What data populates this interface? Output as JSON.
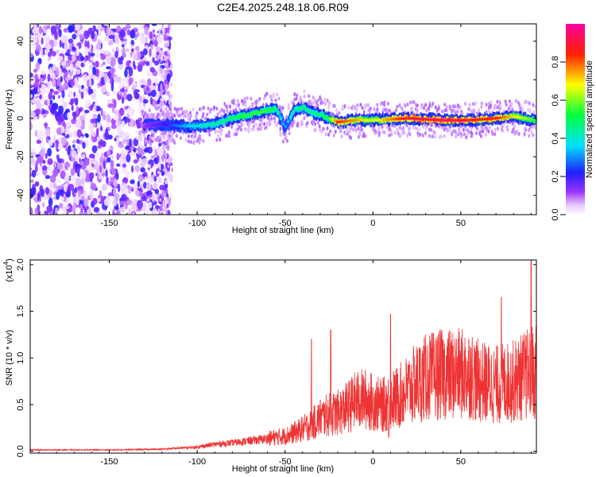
{
  "figure": {
    "title": "C2E4.2025.248.18.06.R09"
  },
  "chart_data": [
    {
      "type": "heatmap",
      "xlabel": "Height of straight line (km)",
      "ylabel": "Frequency (Hz)",
      "xlim": [
        -195,
        93
      ],
      "ylim": [
        -50,
        49
      ],
      "x_ticks": [
        "-150",
        "-100",
        "-50",
        "0",
        "50"
      ],
      "x_tick_values": [
        -150,
        -100,
        -50,
        0,
        50
      ],
      "y_ticks": [
        "-40",
        "-20",
        "0",
        "20",
        "40"
      ],
      "y_tick_values": [
        -40,
        -20,
        0,
        20,
        40
      ],
      "grid": false,
      "colorbar": {
        "label": "Normalized spectral amplitude",
        "range": [
          0,
          1
        ],
        "ticks": [
          "0.0",
          "0.2",
          "0.4",
          "0.6",
          "0.8"
        ],
        "tick_values": [
          0.0,
          0.2,
          0.4,
          0.6,
          0.8
        ],
        "colormap": "rainbow (white-violet-blue-cyan-green-yellow-red-magenta)"
      },
      "ridge": {
        "x": [
          -130,
          -120,
          -110,
          -100,
          -90,
          -80,
          -70,
          -60,
          -55,
          -50,
          -45,
          -40,
          -35,
          -30,
          -25,
          -20,
          -10,
          0,
          20,
          40,
          55,
          70,
          80,
          92
        ],
        "freq": [
          -4,
          -3,
          -4,
          -4,
          -3,
          0,
          2,
          4,
          5,
          -5,
          4,
          6,
          3,
          2,
          0,
          -2,
          -1,
          -1,
          0,
          -1,
          -1,
          0,
          1,
          -1
        ],
        "amplitude": [
          0.15,
          0.2,
          0.3,
          0.4,
          0.45,
          0.5,
          0.55,
          0.55,
          0.5,
          0.3,
          0.45,
          0.5,
          0.45,
          0.5,
          0.55,
          0.85,
          0.75,
          0.65,
          0.9,
          0.95,
          0.9,
          0.85,
          0.7,
          0.55
        ]
      }
    },
    {
      "type": "line",
      "xlabel": "Height of straight line (km)",
      "ylabel": "SNR (10 * v/v)",
      "y_scale_label": "(x10",
      "y_scale_exponent": "4",
      "y_scale_suffix": ")",
      "xlim": [
        -195,
        93
      ],
      "ylim": [
        -0.02,
        2.05
      ],
      "x_ticks": [
        "-150",
        "-100",
        "-50",
        "0",
        "50"
      ],
      "x_tick_values": [
        -150,
        -100,
        -50,
        0,
        50
      ],
      "y_ticks": [
        "0.0",
        "0.5",
        "1.0",
        "1.5",
        "2.0"
      ],
      "y_tick_values": [
        0.0,
        0.5,
        1.0,
        1.5,
        2.0
      ],
      "grid": false,
      "series": [
        {
          "color": "#ee3333",
          "envelope_x": [
            -195,
            -150,
            -120,
            -100,
            -90,
            -80,
            -70,
            -60,
            -50,
            -45,
            -40,
            -35,
            -30,
            -25,
            -20,
            -15,
            -10,
            -5,
            0,
            5,
            10,
            15,
            20,
            25,
            30,
            40,
            50,
            55,
            60,
            70,
            80,
            88,
            93
          ],
          "envelope_y": [
            0.02,
            0.02,
            0.03,
            0.06,
            0.1,
            0.12,
            0.15,
            0.18,
            0.22,
            0.26,
            0.32,
            0.38,
            0.48,
            0.52,
            0.55,
            0.62,
            0.72,
            0.75,
            0.7,
            0.65,
            0.72,
            0.78,
            0.88,
            0.98,
            1.05,
            1.1,
            1.1,
            1.12,
            1.0,
            0.95,
            1.0,
            1.1,
            1.2
          ],
          "spikes": [
            {
              "x": -35,
              "y": 1.2
            },
            {
              "x": -24,
              "y": 1.3
            },
            {
              "x": 10,
              "y": 1.47
            },
            {
              "x": 9,
              "y": 0.15
            },
            {
              "x": 73,
              "y": 1.65
            },
            {
              "x": 90,
              "y": 2.05
            },
            {
              "x": 92,
              "y": 0.35
            }
          ]
        }
      ]
    }
  ]
}
